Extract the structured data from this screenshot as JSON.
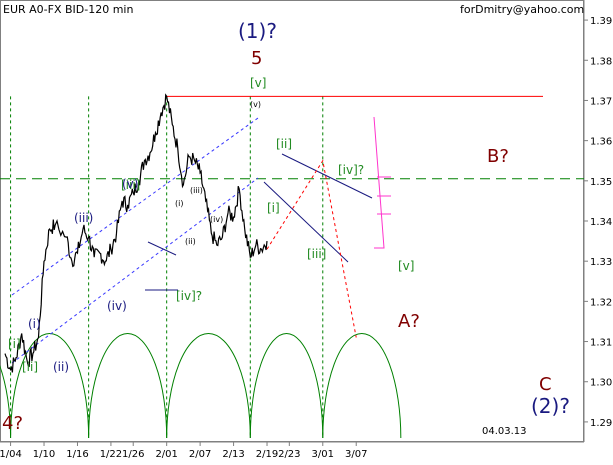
{
  "header": {
    "title": "EUR A0-FX BID-120 min",
    "source": "forDmitry@yahoo.com",
    "date_marker": "04.03.13"
  },
  "chart_data": {
    "type": "candlestick",
    "title": "EUR A0-FX BID-120 min",
    "xlabel": "",
    "ylabel": "",
    "x_ticks": [
      "1/04",
      "1/10",
      "1/16",
      "1/22",
      "1/26",
      "2/01",
      "2/07",
      "2/13",
      "2/19",
      "2/23",
      "3/01",
      "3/07"
    ],
    "y_ticks": [
      1.29,
      1.3,
      1.31,
      1.32,
      1.33,
      1.34,
      1.35,
      1.36,
      1.37,
      1.38,
      1.39
    ],
    "ylim": [
      1.285,
      1.395
    ],
    "grid": false,
    "price_path": [
      [
        "1/03",
        1.307
      ],
      [
        "1/04",
        1.303
      ],
      [
        "1/05",
        1.306
      ],
      [
        "1/06",
        1.312
      ],
      [
        "1/07",
        1.305
      ],
      [
        "1/08",
        1.307
      ],
      [
        "1/09",
        1.311
      ],
      [
        "1/10",
        1.33
      ],
      [
        "1/11",
        1.338
      ],
      [
        "1/12",
        1.339
      ],
      [
        "1/14",
        1.336
      ],
      [
        "1/15",
        1.33
      ],
      [
        "1/16",
        1.332
      ],
      [
        "1/17",
        1.338
      ],
      [
        "1/18",
        1.336
      ],
      [
        "1/19",
        1.331
      ],
      [
        "1/20",
        1.332
      ],
      [
        "1/21",
        1.33
      ],
      [
        "1/22",
        1.333
      ],
      [
        "1/23",
        1.337
      ],
      [
        "1/24",
        1.345
      ],
      [
        "1/25",
        1.344
      ],
      [
        "1/26",
        1.347
      ],
      [
        "1/27",
        1.35
      ],
      [
        "1/28",
        1.355
      ],
      [
        "1/29",
        1.357
      ],
      [
        "1/30",
        1.362
      ],
      [
        "1/31",
        1.367
      ],
      [
        "2/01",
        1.371
      ],
      [
        "2/02",
        1.364
      ],
      [
        "2/03",
        1.358
      ],
      [
        "2/04",
        1.349
      ],
      [
        "2/05",
        1.356
      ],
      [
        "2/06",
        1.355
      ],
      [
        "2/07",
        1.352
      ],
      [
        "2/08",
        1.345
      ],
      [
        "2/09",
        1.337
      ],
      [
        "2/10",
        1.334
      ],
      [
        "2/11",
        1.336
      ],
      [
        "2/12",
        1.342
      ],
      [
        "2/13",
        1.341
      ],
      [
        "2/14",
        1.348
      ],
      [
        "2/15",
        1.338
      ],
      [
        "2/16",
        1.331
      ],
      [
        "2/17",
        1.334
      ],
      [
        "2/18",
        1.333
      ],
      [
        "2/19",
        1.335
      ]
    ],
    "levels": [
      {
        "name": "horizontal-support",
        "value": 1.3505,
        "style": "dashed",
        "color": "#008000"
      },
      {
        "name": "wave-1-top",
        "value": 1.371,
        "style": "solid",
        "color": "#ff0000"
      }
    ],
    "projection": {
      "color": "#ff0000",
      "points": [
        [
          "2/19",
          1.333
        ],
        [
          "3/01",
          1.355
        ],
        [
          "3/07",
          1.311
        ]
      ]
    },
    "cycles": {
      "color": "#008000",
      "troughs": [
        "1/04",
        "1/18",
        "2/01",
        "2/16",
        "3/01"
      ],
      "peak": 1.312,
      "bottom": 1.286
    }
  },
  "annotations": {
    "wave_1_top_label": "(1)?",
    "wave_5": "5",
    "wave_4": "4?",
    "wave_a": "A?",
    "wave_b": "B?",
    "wave_c": "C",
    "wave_2": "(2)?",
    "green_labels": [
      "[i]",
      "[ii]",
      "[iii]",
      "[iv]?",
      "[v]",
      "[ii]",
      "[i]",
      "[iii]",
      "[iv]?",
      "[v]"
    ],
    "navy_labels": [
      "(i)",
      "(ii)",
      "(iii)",
      "(iv)",
      "(v)"
    ],
    "small_labels": [
      "(i)",
      "(ii)",
      "(iii)",
      "(iv)",
      "(v)"
    ]
  },
  "colors": {
    "navy": "#1a1a80",
    "green": "#228b22",
    "dark_red": "#800000",
    "red": "#ff0000",
    "magenta": "#ff33cc",
    "axis": "#808080"
  }
}
